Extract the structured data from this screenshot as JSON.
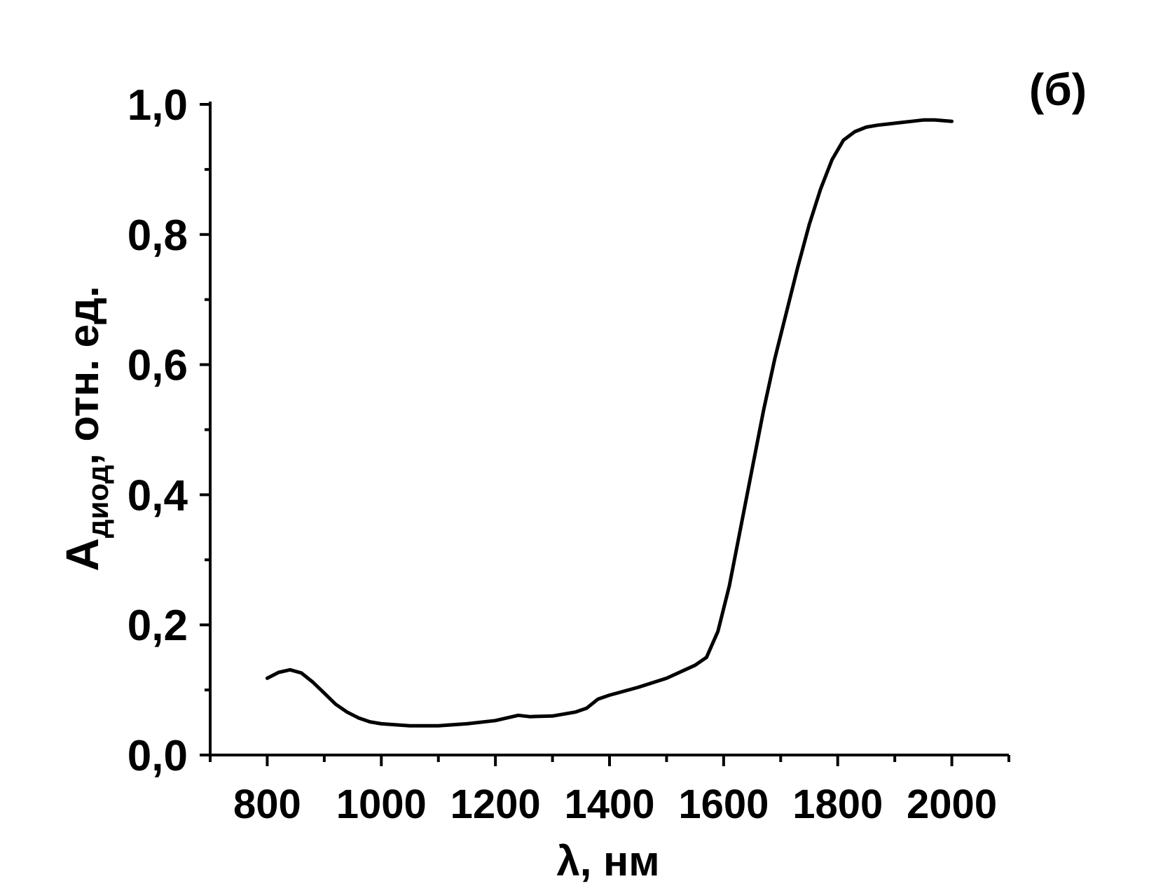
{
  "chart_data": {
    "type": "line",
    "panel_label": "(б)",
    "xlabel": "λ, нм",
    "ylabel_main": "A",
    "ylabel_sub": "диод",
    "ylabel_rest": ", отн. ед.",
    "xlim": [
      700,
      2100
    ],
    "ylim": [
      0.0,
      1.0
    ],
    "x_major_ticks": [
      800,
      1000,
      1200,
      1400,
      1600,
      1800,
      2000
    ],
    "x_tick_labels": [
      "800",
      "1000",
      "1200",
      "1400",
      "1600",
      "1800",
      "2000"
    ],
    "x_minor_ticks": [
      700,
      900,
      1100,
      1300,
      1500,
      1700,
      1900,
      2100
    ],
    "y_major_ticks": [
      0.0,
      0.2,
      0.4,
      0.6,
      0.8,
      1.0
    ],
    "y_tick_labels": [
      "0,0",
      "0,2",
      "0,4",
      "0,6",
      "0,8",
      "1,0"
    ],
    "y_minor_ticks": [
      0.1,
      0.3,
      0.5,
      0.7,
      0.9
    ],
    "grid": false,
    "line_color": "#000000",
    "series": [
      {
        "x": [
          800,
          820,
          840,
          860,
          880,
          900,
          920,
          940,
          960,
          980,
          1000,
          1050,
          1100,
          1150,
          1200,
          1240,
          1260,
          1300,
          1340,
          1360,
          1380,
          1400,
          1450,
          1500,
          1550,
          1570,
          1590,
          1610,
          1630,
          1650,
          1670,
          1690,
          1710,
          1730,
          1750,
          1770,
          1790,
          1810,
          1830,
          1850,
          1870,
          1890,
          1910,
          1930,
          1950,
          1970,
          2000
        ],
        "y": [
          0.118,
          0.127,
          0.131,
          0.126,
          0.112,
          0.095,
          0.078,
          0.066,
          0.057,
          0.051,
          0.048,
          0.045,
          0.045,
          0.048,
          0.053,
          0.061,
          0.059,
          0.06,
          0.066,
          0.072,
          0.086,
          0.092,
          0.104,
          0.118,
          0.138,
          0.15,
          0.19,
          0.26,
          0.35,
          0.44,
          0.53,
          0.61,
          0.68,
          0.75,
          0.815,
          0.87,
          0.915,
          0.945,
          0.958,
          0.965,
          0.968,
          0.97,
          0.972,
          0.974,
          0.976,
          0.976,
          0.974
        ]
      }
    ]
  }
}
